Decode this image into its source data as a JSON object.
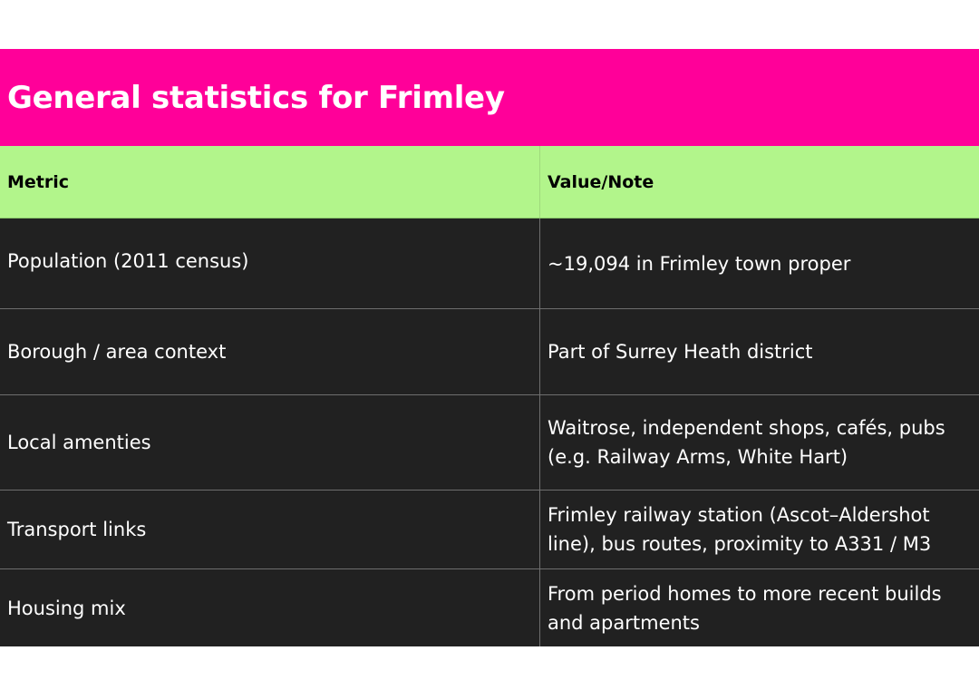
{
  "title": "General statistics for Frimley",
  "columns": [
    "Metric",
    "Value/Note"
  ],
  "rows": [
    {
      "metric": "Population (2011 census)",
      "value": "~19,094 in Frimley town proper"
    },
    {
      "metric": "Borough / area context",
      "value": "Part of Surrey Heath district"
    },
    {
      "metric": "Local amenties",
      "value": "Waitrose, independent shops, cafés, pubs (e.g. Railway Arms, White Hart)"
    },
    {
      "metric": "Transport links",
      "value": "Frimley railway station (Ascot–Aldershot line), bus routes, proximity to A331 / M3"
    },
    {
      "metric": "Housing mix",
      "value": "From period homes to more recent builds and apartments"
    }
  ],
  "colors": {
    "title_bg": "#ff0099",
    "header_bg": "#b2f58b",
    "row_bg": "#212121"
  }
}
